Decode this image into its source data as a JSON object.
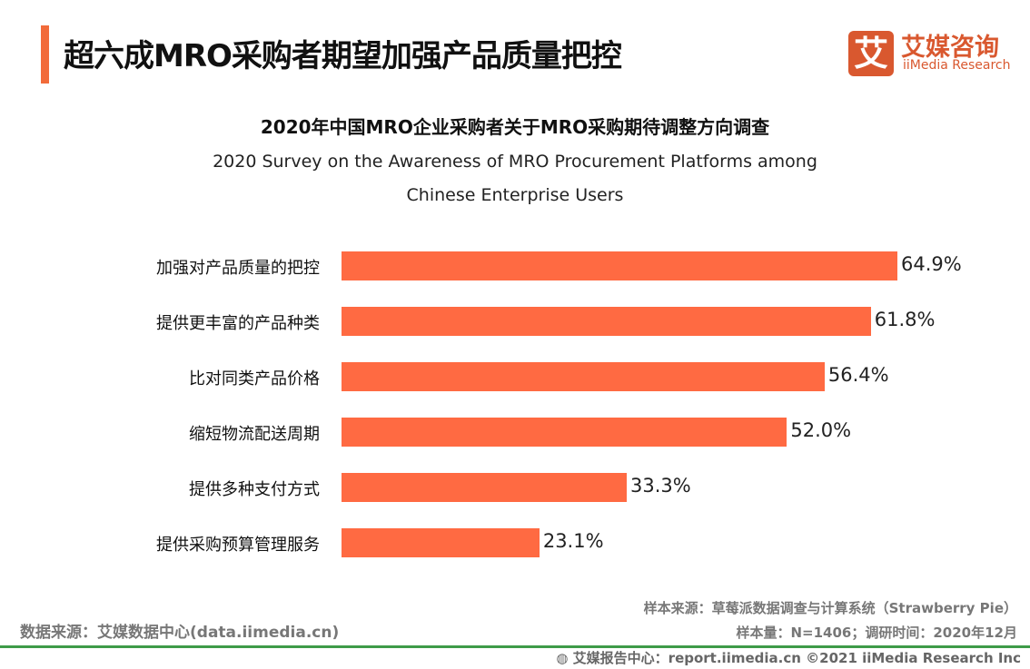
{
  "header": {
    "title": "超六成MRO采购者期望加强产品质量把控",
    "logo_mark": "艾",
    "logo_cn": "艾媒咨询",
    "logo_en": "iiMedia Research",
    "accent_color": "#f26b3a"
  },
  "chart_data": {
    "type": "bar",
    "orientation": "horizontal",
    "title": "2020年中国MRO企业采购者关于MRO采购期待调整方向调查",
    "subtitle_line1": "2020 Survey on the Awareness of MRO Procurement Platforms among",
    "subtitle_line2": "Chinese Enterprise Users",
    "categories": [
      "加强对产品质量的把控",
      "提供更丰富的产品种类",
      "比对同类产品价格",
      "缩短物流配送周期",
      "提供多种支付方式",
      "提供采购预算管理服务"
    ],
    "values": [
      64.9,
      61.8,
      56.4,
      52.0,
      33.3,
      23.1
    ],
    "value_labels": [
      "64.9%",
      "61.8%",
      "56.4%",
      "52.0%",
      "33.3%",
      "23.1%"
    ],
    "unit": "%",
    "bar_color": "#ff6a42",
    "grid": false
  },
  "footer": {
    "data_source": "数据来源：艾媒数据中心(data.iimedia.cn)",
    "sample_source": "样本来源：草莓派数据调查与计算系统（Strawberry Pie）",
    "sample_info": "样本量：N=1406；调研时间：2020年12月",
    "report_center": "艾媒报告中心：report.iimedia.cn   ©2021  iiMedia Research  Inc"
  }
}
